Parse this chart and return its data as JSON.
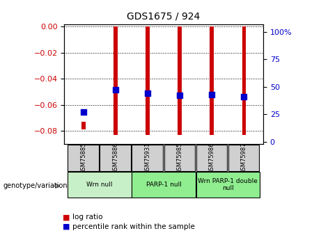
{
  "title": "GDS1675 / 924",
  "samples": [
    "GSM75885",
    "GSM75886",
    "GSM75931",
    "GSM75985",
    "GSM75986",
    "GSM75987"
  ],
  "log_ratios": [
    -0.079,
    -0.083,
    -0.083,
    -0.083,
    -0.083,
    -0.083
  ],
  "log_ratio_tops": [
    -0.073,
    0.0,
    0.0,
    0.0,
    0.0,
    0.0
  ],
  "percentile_ranks": [
    27,
    47,
    44,
    42,
    43,
    41
  ],
  "ylim_left": [
    -0.09,
    0.002
  ],
  "ylim_right": [
    -1.96,
    107
  ],
  "yticks_left": [
    0,
    -0.02,
    -0.04,
    -0.06,
    -0.08
  ],
  "yticks_right": [
    0,
    25,
    50,
    75,
    100
  ],
  "groups": [
    {
      "label": "Wrn null",
      "start": 0,
      "end": 2,
      "color": "#c8f0c8"
    },
    {
      "label": "PARP-1 null",
      "start": 2,
      "end": 4,
      "color": "#90ee90"
    },
    {
      "label": "Wrn PARP-1 double\nnull",
      "start": 4,
      "end": 6,
      "color": "#90ee90"
    }
  ],
  "bar_color": "#cc0000",
  "dot_color": "#0000cc",
  "bar_width": 0.12,
  "dot_size": 40,
  "legend_red": "log ratio",
  "legend_blue": "percentile rank within the sample",
  "left_label_color": "#cc0000",
  "right_label_color": "#0000cc",
  "sample_box_color": "#d0d0d0",
  "genotype_label": "genotype/variation"
}
